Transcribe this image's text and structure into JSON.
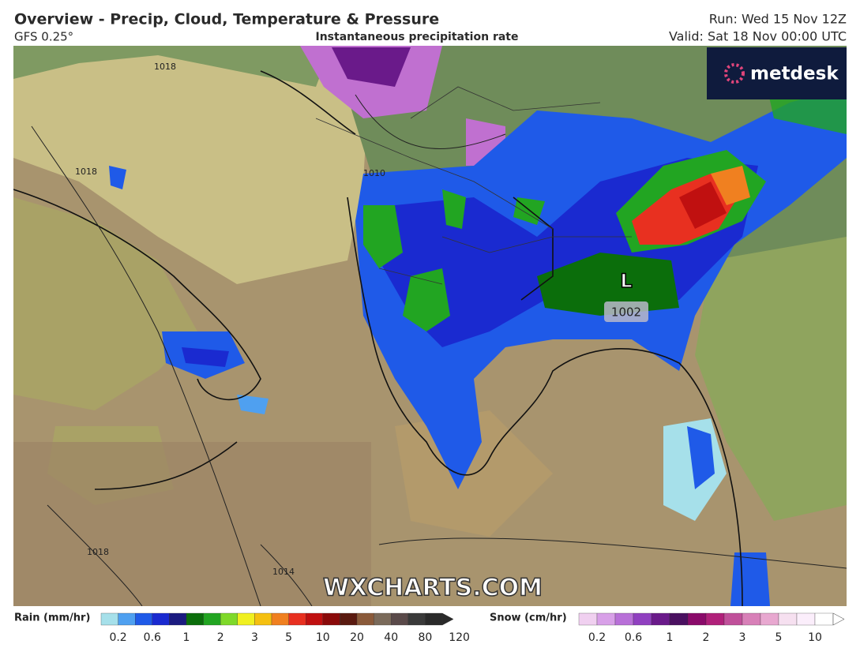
{
  "header": {
    "title": "Overview - Precip, Cloud, Temperature & Pressure",
    "model": "GFS 0.25°",
    "subtitle": "Instantaneous precipitation rate",
    "run": "Run: Wed 15 Nov 12Z",
    "valid": "Valid: Sat 18 Nov 00:00 UTC"
  },
  "logo": "metdesk",
  "watermark": "WXCHARTS.COM",
  "map": {
    "low": {
      "symbol": "L",
      "value": "1002"
    },
    "isobars": [
      "1018",
      "1018",
      "1010",
      "1014",
      "1018"
    ]
  },
  "legend": {
    "rain": {
      "label": "Rain (mm/hr)",
      "ticks": [
        0.2,
        0.6,
        1,
        2,
        3,
        5,
        10,
        20,
        40,
        80,
        120
      ]
    },
    "snow": {
      "label": "Snow (cm/hr)",
      "ticks": [
        0.2,
        0.6,
        1,
        2,
        3,
        5,
        10
      ]
    }
  }
}
